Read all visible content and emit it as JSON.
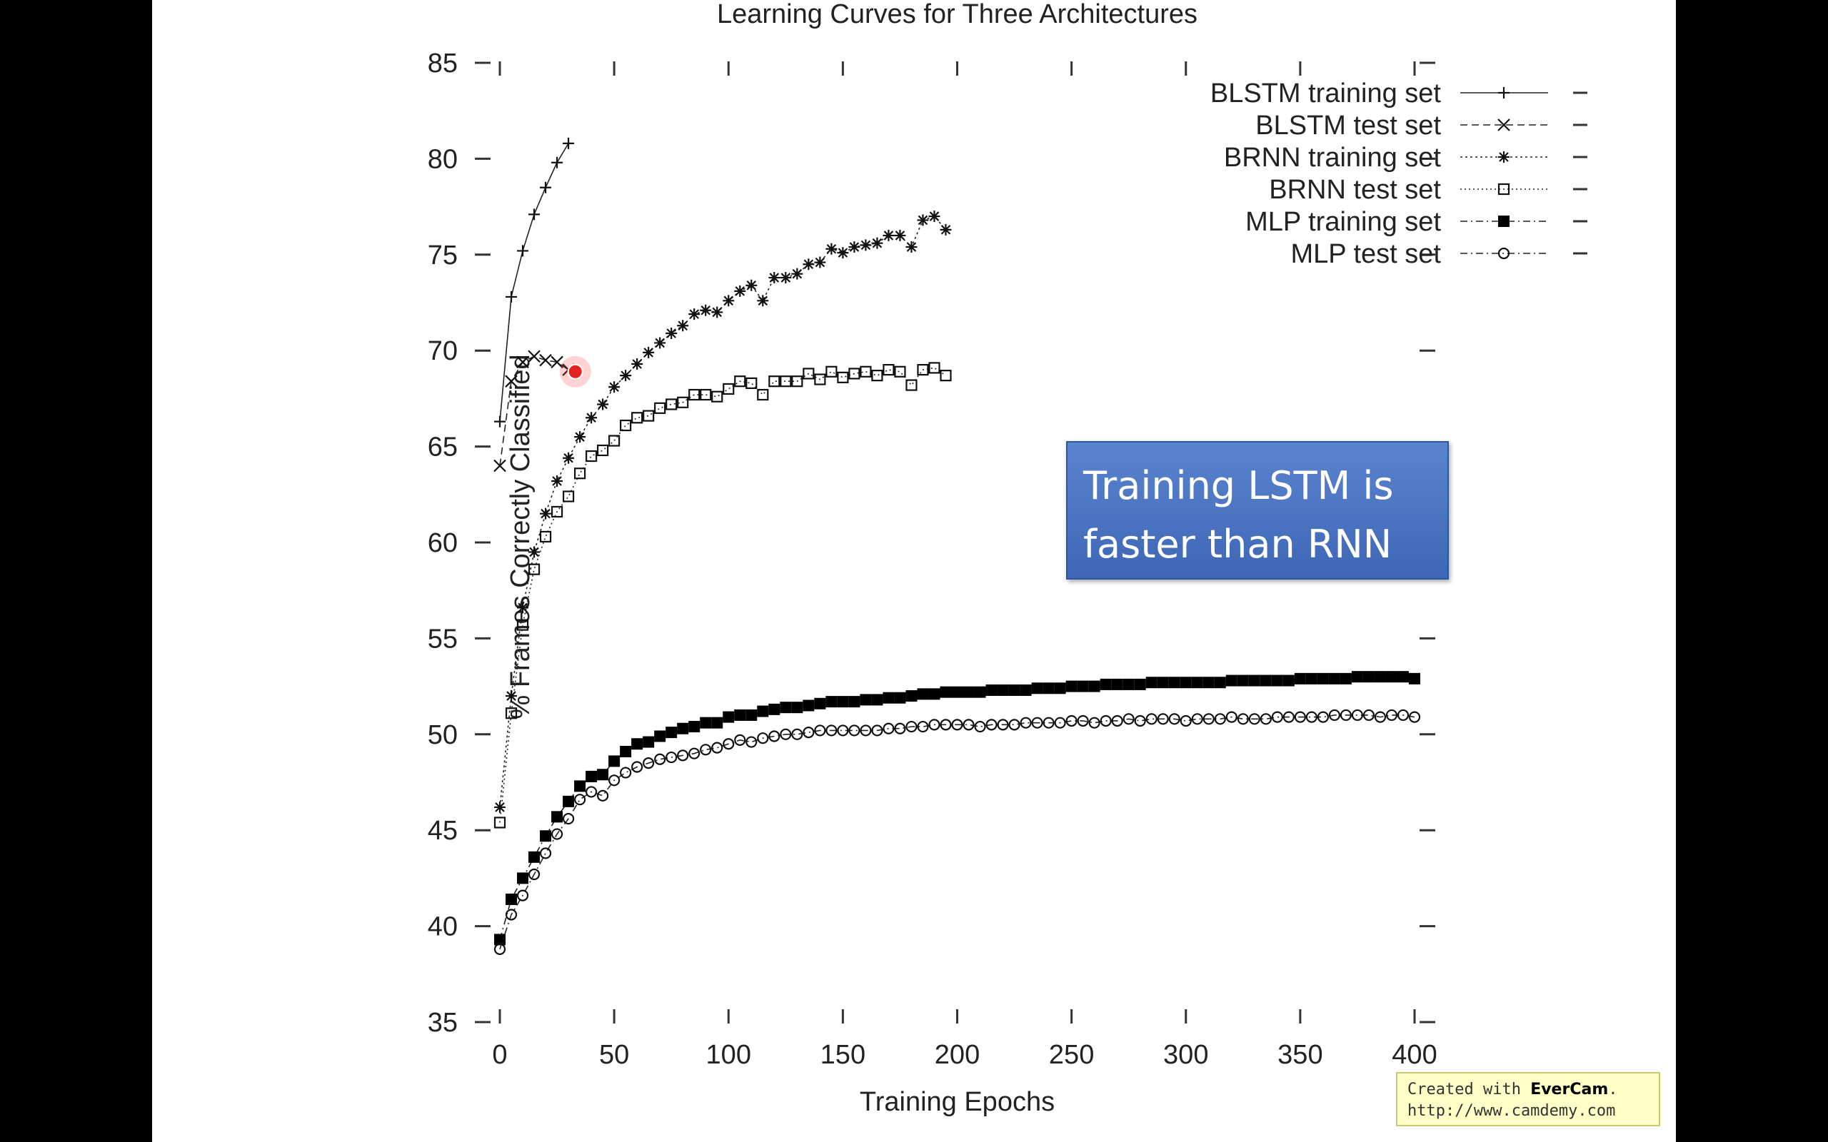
{
  "chart_data": {
    "type": "line",
    "title": "Learning Curves for Three Architectures",
    "xlabel": "Training Epochs",
    "ylabel": "% Frames Correctly Classified",
    "xlim": [
      0,
      400
    ],
    "ylim": [
      35,
      85
    ],
    "xticks": [
      0,
      50,
      100,
      150,
      200,
      250,
      300,
      350,
      400
    ],
    "yticks": [
      35,
      40,
      45,
      50,
      55,
      60,
      65,
      70,
      75,
      80,
      85
    ],
    "legend_position": "top-right",
    "series": [
      {
        "name": "BLSTM training set",
        "marker": "plus",
        "dash": "solid",
        "x": [
          0,
          5,
          10,
          15,
          20,
          25,
          30
        ],
        "y": [
          66.3,
          72.8,
          75.2,
          77.1,
          78.5,
          79.8,
          80.8
        ]
      },
      {
        "name": "BLSTM test set",
        "marker": "cross",
        "dash": "dashed",
        "x": [
          0,
          5,
          10,
          15,
          20,
          25,
          30
        ],
        "y": [
          64.0,
          68.4,
          69.4,
          69.7,
          69.5,
          69.4,
          69.0
        ]
      },
      {
        "name": "BRNN training set",
        "marker": "star",
        "dash": "dashed-dotted",
        "x": [
          0,
          5,
          10,
          15,
          20,
          25,
          30,
          35,
          40,
          45,
          50,
          55,
          60,
          65,
          70,
          75,
          80,
          85,
          90,
          95,
          100,
          105,
          110,
          115,
          120,
          125,
          130,
          135,
          140,
          145,
          150,
          155,
          160,
          165,
          170,
          175,
          180,
          185,
          190,
          195
        ],
        "y": [
          46.2,
          52.0,
          56.6,
          59.5,
          61.5,
          63.2,
          64.4,
          65.5,
          66.5,
          67.2,
          68.1,
          68.7,
          69.3,
          69.9,
          70.4,
          70.9,
          71.3,
          71.9,
          72.1,
          72.0,
          72.6,
          73.1,
          73.4,
          72.6,
          73.8,
          73.8,
          74.0,
          74.5,
          74.6,
          75.3,
          75.1,
          75.4,
          75.5,
          75.6,
          76.0,
          76.0,
          75.4,
          76.8,
          77.0,
          76.3
        ]
      },
      {
        "name": "BRNN test set",
        "marker": "square",
        "dash": "dotted",
        "x": [
          0,
          5,
          10,
          15,
          20,
          25,
          30,
          35,
          40,
          45,
          50,
          55,
          60,
          65,
          70,
          75,
          80,
          85,
          90,
          95,
          100,
          105,
          110,
          115,
          120,
          125,
          130,
          135,
          140,
          145,
          150,
          155,
          160,
          165,
          170,
          175,
          180,
          185,
          190,
          195
        ],
        "y": [
          45.4,
          51.1,
          55.7,
          58.6,
          60.3,
          61.6,
          62.4,
          63.6,
          64.5,
          64.8,
          65.3,
          66.1,
          66.5,
          66.6,
          67.0,
          67.2,
          67.3,
          67.7,
          67.7,
          67.6,
          68.0,
          68.4,
          68.3,
          67.7,
          68.4,
          68.4,
          68.4,
          68.8,
          68.5,
          68.9,
          68.6,
          68.8,
          68.9,
          68.7,
          69.0,
          68.9,
          68.2,
          69.0,
          69.1,
          68.7
        ]
      },
      {
        "name": "MLP training set",
        "marker": "filled-square",
        "dash": "dash-dot",
        "x": [
          0,
          5,
          10,
          15,
          20,
          25,
          30,
          35,
          40,
          45,
          50,
          55,
          60,
          65,
          70,
          75,
          80,
          85,
          90,
          95,
          100,
          105,
          110,
          115,
          120,
          125,
          130,
          135,
          140,
          145,
          150,
          155,
          160,
          165,
          170,
          175,
          180,
          185,
          190,
          195,
          200,
          205,
          210,
          215,
          220,
          225,
          230,
          235,
          240,
          245,
          250,
          255,
          260,
          265,
          270,
          275,
          280,
          285,
          290,
          295,
          300,
          305,
          310,
          315,
          320,
          325,
          330,
          335,
          340,
          345,
          350,
          355,
          360,
          365,
          370,
          375,
          380,
          385,
          390,
          395,
          400
        ],
        "y": [
          39.3,
          41.4,
          42.5,
          43.6,
          44.7,
          45.7,
          46.5,
          47.3,
          47.8,
          47.9,
          48.6,
          49.1,
          49.5,
          49.6,
          49.9,
          50.1,
          50.3,
          50.4,
          50.6,
          50.6,
          50.9,
          51.0,
          51.0,
          51.2,
          51.3,
          51.4,
          51.4,
          51.5,
          51.6,
          51.7,
          51.7,
          51.7,
          51.8,
          51.8,
          51.9,
          51.9,
          52.0,
          52.1,
          52.1,
          52.2,
          52.2,
          52.2,
          52.2,
          52.3,
          52.3,
          52.3,
          52.3,
          52.4,
          52.4,
          52.4,
          52.5,
          52.5,
          52.5,
          52.6,
          52.6,
          52.6,
          52.6,
          52.7,
          52.7,
          52.7,
          52.7,
          52.7,
          52.7,
          52.7,
          52.8,
          52.8,
          52.8,
          52.8,
          52.8,
          52.8,
          52.9,
          52.9,
          52.9,
          52.9,
          52.9,
          53.0,
          53.0,
          53.0,
          53.0,
          53.0,
          52.9
        ]
      },
      {
        "name": "MLP test set",
        "marker": "circle",
        "dash": "dash-dot",
        "x": [
          0,
          5,
          10,
          15,
          20,
          25,
          30,
          35,
          40,
          45,
          50,
          55,
          60,
          65,
          70,
          75,
          80,
          85,
          90,
          95,
          100,
          105,
          110,
          115,
          120,
          125,
          130,
          135,
          140,
          145,
          150,
          155,
          160,
          165,
          170,
          175,
          180,
          185,
          190,
          195,
          200,
          205,
          210,
          215,
          220,
          225,
          230,
          235,
          240,
          245,
          250,
          255,
          260,
          265,
          270,
          275,
          280,
          285,
          290,
          295,
          300,
          305,
          310,
          315,
          320,
          325,
          330,
          335,
          340,
          345,
          350,
          355,
          360,
          365,
          370,
          375,
          380,
          385,
          390,
          395,
          400
        ],
        "y": [
          38.8,
          40.6,
          41.6,
          42.7,
          43.8,
          44.8,
          45.6,
          46.6,
          47.0,
          46.8,
          47.6,
          48.0,
          48.3,
          48.5,
          48.7,
          48.8,
          48.9,
          49.0,
          49.2,
          49.3,
          49.5,
          49.7,
          49.6,
          49.8,
          49.9,
          50.0,
          50.0,
          50.1,
          50.2,
          50.2,
          50.2,
          50.2,
          50.2,
          50.2,
          50.3,
          50.3,
          50.4,
          50.4,
          50.5,
          50.5,
          50.5,
          50.5,
          50.4,
          50.5,
          50.5,
          50.5,
          50.6,
          50.6,
          50.6,
          50.6,
          50.7,
          50.7,
          50.6,
          50.7,
          50.7,
          50.8,
          50.7,
          50.8,
          50.8,
          50.8,
          50.7,
          50.8,
          50.8,
          50.8,
          50.9,
          50.8,
          50.8,
          50.8,
          50.9,
          50.9,
          50.9,
          50.9,
          50.9,
          51.0,
          51.0,
          51.0,
          51.0,
          50.9,
          51.0,
          51.0,
          50.9
        ]
      }
    ],
    "highlight_point": {
      "x": 33,
      "y": 68.9
    }
  },
  "callout": {
    "line1": "Training LSTM is",
    "line2": "faster than RNN"
  },
  "watermark": {
    "prefix": "Created with ",
    "brand": "EverCam",
    "suffix": ".",
    "url": "http://www.camdemy.com"
  }
}
